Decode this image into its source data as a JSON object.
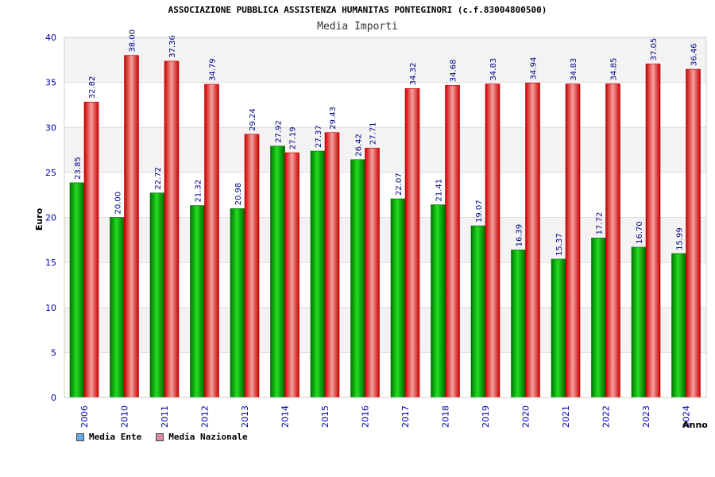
{
  "chart_data": {
    "type": "bar",
    "title": "ASSOCIAZIONE PUBBLICA ASSISTENZA HUMANITAS PONTEGINORI (c.f.83004800500)",
    "subtitle": "Media Importi",
    "ylabel": "Euro",
    "xlabel": "Anno",
    "ylim": [
      0,
      40
    ],
    "yticks": [
      0,
      5,
      10,
      15,
      20,
      25,
      30,
      35,
      40
    ],
    "categories": [
      "2006",
      "2010",
      "2011",
      "2012",
      "2013",
      "2014",
      "2015",
      "2016",
      "2017",
      "2018",
      "2019",
      "2020",
      "2021",
      "2022",
      "2023",
      "2024"
    ],
    "series": [
      {
        "name": "Media Ente",
        "legend_color": "#66aaee",
        "bar_color": "#00bb00",
        "values": [
          23.85,
          20.0,
          22.72,
          21.32,
          20.98,
          27.92,
          27.37,
          26.42,
          22.07,
          21.41,
          19.07,
          16.39,
          15.37,
          17.72,
          16.7,
          15.99
        ],
        "labels": [
          "23.85",
          "20.00",
          "22.72",
          "21.32",
          "20.98",
          "27.92",
          "27.37",
          "26.42",
          "22.07",
          "21.41",
          "19.07",
          "16.39",
          "15.37",
          "17.72",
          "16.70",
          "15.99"
        ]
      },
      {
        "name": "Media Nazionale",
        "legend_color": "#dd88aa",
        "bar_color": "#ee1111",
        "values": [
          32.82,
          38.0,
          37.36,
          34.79,
          29.24,
          27.19,
          29.43,
          27.71,
          34.32,
          34.68,
          34.83,
          34.94,
          34.83,
          34.85,
          37.05,
          36.46
        ],
        "labels": [
          "32.82",
          "38.00",
          "37.36",
          "34.79",
          "29.24",
          "27.19",
          "29.43",
          "27.71",
          "34.32",
          "34.68",
          "34.83",
          "34.94",
          "34.83",
          "34.85",
          "37.05",
          "36.46"
        ]
      }
    ],
    "grid": true,
    "legend_position": "bottom-left"
  }
}
